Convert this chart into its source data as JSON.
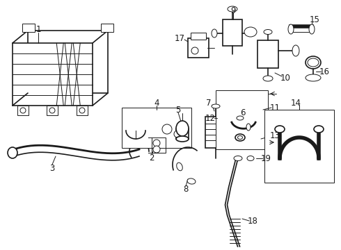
{
  "bg_color": "#ffffff",
  "line_color": "#1a1a1a",
  "lw_thin": 0.7,
  "lw_med": 1.2,
  "lw_thick": 2.0,
  "label_fontsize": 8.5
}
